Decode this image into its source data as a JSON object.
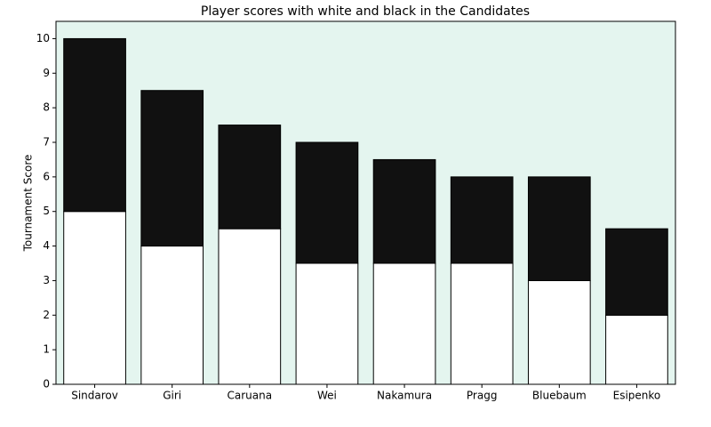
{
  "chart_data": {
    "type": "stacked_bar",
    "title": "Player scores with white and black in the Candidates",
    "y_label": "Tournament Score",
    "categories": [
      "Sindarov",
      "Giri",
      "Caruana",
      "Wei",
      "Nakamura",
      "Pragg",
      "Bluebaum",
      "Esipenko"
    ],
    "series": [
      {
        "color": "#ffffff",
        "values": [
          5,
          4,
          4.5,
          3.5,
          3.5,
          3.5,
          3,
          2
        ]
      },
      {
        "color": "#111111",
        "values": [
          5,
          4.5,
          3,
          3.5,
          3,
          2.5,
          3,
          2.5
        ]
      }
    ],
    "ylim": [
      0,
      10.5
    ],
    "yticks": [
      0,
      1,
      2,
      3,
      4,
      5,
      6,
      7,
      8,
      9,
      10
    ],
    "background": "#e4f5ef"
  }
}
